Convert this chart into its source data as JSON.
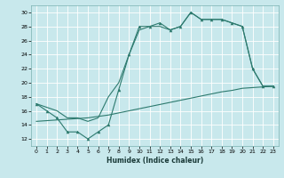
{
  "bg_color": "#c8e8ec",
  "line_color": "#2d7a6e",
  "xlabel": "Humidex (Indice chaleur)",
  "xlim": [
    -0.5,
    23.5
  ],
  "ylim": [
    11,
    31
  ],
  "xticks": [
    0,
    1,
    2,
    3,
    4,
    5,
    6,
    7,
    8,
    9,
    10,
    11,
    12,
    13,
    14,
    15,
    16,
    17,
    18,
    19,
    20,
    21,
    22,
    23
  ],
  "yticks": [
    12,
    14,
    16,
    18,
    20,
    22,
    24,
    26,
    28,
    30
  ],
  "line1_x": [
    0,
    1,
    2,
    3,
    4,
    5,
    6,
    7,
    8,
    9,
    10,
    11,
    12,
    13,
    14,
    15,
    16,
    17,
    18,
    19,
    20,
    21,
    22,
    23
  ],
  "line1_y": [
    17,
    16,
    15,
    13,
    13,
    12,
    13,
    14,
    19,
    24,
    28,
    28,
    28.5,
    27.5,
    28,
    30,
    29,
    29,
    29,
    28.5,
    28,
    22,
    19.5,
    19.5
  ],
  "line2_x": [
    0,
    1,
    2,
    3,
    4,
    5,
    6,
    7,
    8,
    9,
    10,
    11,
    12,
    13,
    14,
    15,
    16,
    17,
    18,
    19,
    20,
    21,
    22,
    23
  ],
  "line2_y": [
    14.5,
    14.6,
    14.7,
    14.8,
    14.9,
    15.0,
    15.2,
    15.4,
    15.7,
    16.0,
    16.3,
    16.6,
    16.9,
    17.2,
    17.5,
    17.8,
    18.1,
    18.4,
    18.7,
    18.9,
    19.2,
    19.3,
    19.4,
    19.5
  ],
  "line3_x": [
    0,
    1,
    2,
    3,
    4,
    5,
    6,
    7,
    8,
    9,
    10,
    11,
    12,
    13,
    14,
    15,
    16,
    17,
    18,
    19,
    20,
    21,
    22,
    23
  ],
  "line3_y": [
    17,
    16.5,
    16.0,
    15.0,
    15.0,
    14.5,
    15.0,
    18.0,
    20.0,
    24.0,
    27.5,
    28.0,
    28.0,
    27.5,
    28.0,
    30.0,
    29.0,
    29.0,
    29.0,
    28.5,
    28.0,
    22.0,
    19.5,
    19.5
  ]
}
